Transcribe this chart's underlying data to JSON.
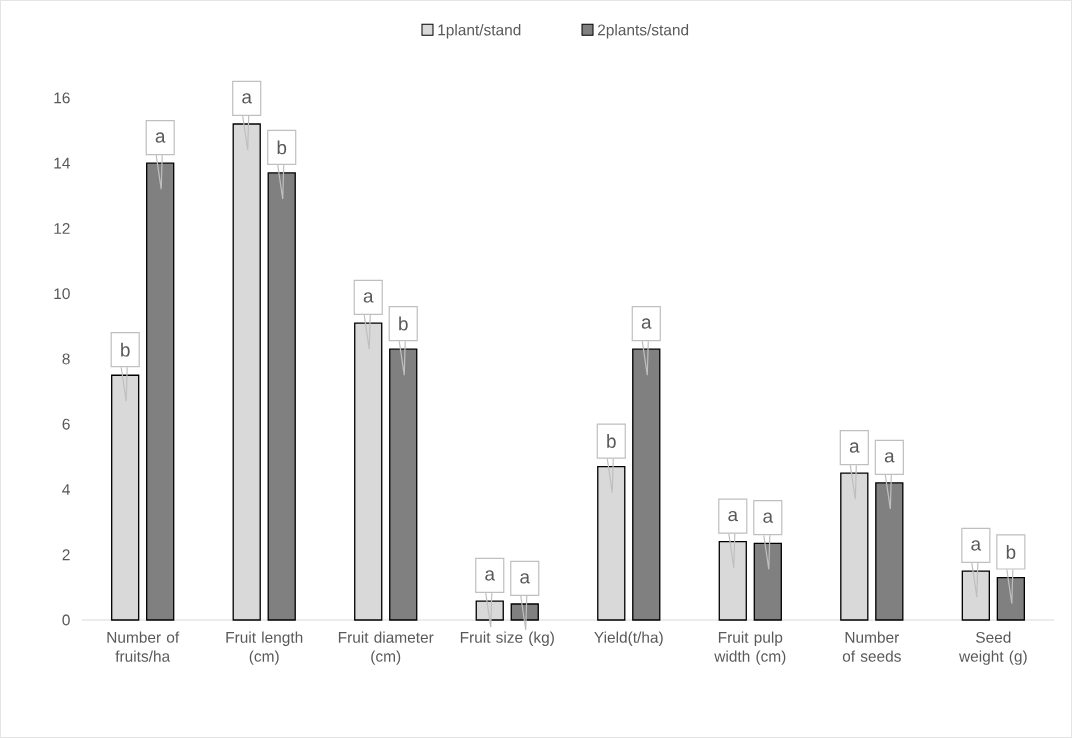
{
  "chart_data": {
    "type": "bar",
    "categories": [
      "Number of fruits/ha",
      "Fruit length (cm)",
      "Fruit diameter (cm)",
      "Fruit size (kg)",
      "Yield(t/ha)",
      "Fruit pulp width (cm)",
      "Number of seeds",
      "Seed weight (g)"
    ],
    "series": [
      {
        "name": "1plant/stand",
        "color": "#d9d9d9",
        "values": [
          7.5,
          15.2,
          9.1,
          0.58,
          4.7,
          2.4,
          4.5,
          1.5
        ],
        "value_labels": [
          "b",
          "a",
          "a",
          "a",
          "b",
          "a",
          "a",
          "a"
        ]
      },
      {
        "name": "2plants/stand",
        "color": "#808080",
        "values": [
          14.0,
          13.7,
          8.3,
          0.49,
          8.3,
          2.35,
          4.2,
          1.3
        ],
        "value_labels": [
          "a",
          "b",
          "b",
          "a",
          "a",
          "a",
          "a",
          "b"
        ]
      }
    ],
    "ylim": [
      0,
      16
    ],
    "yticks": [
      0,
      2,
      4,
      6,
      8,
      10,
      12,
      14,
      16
    ],
    "grid": false,
    "legend": "top"
  }
}
